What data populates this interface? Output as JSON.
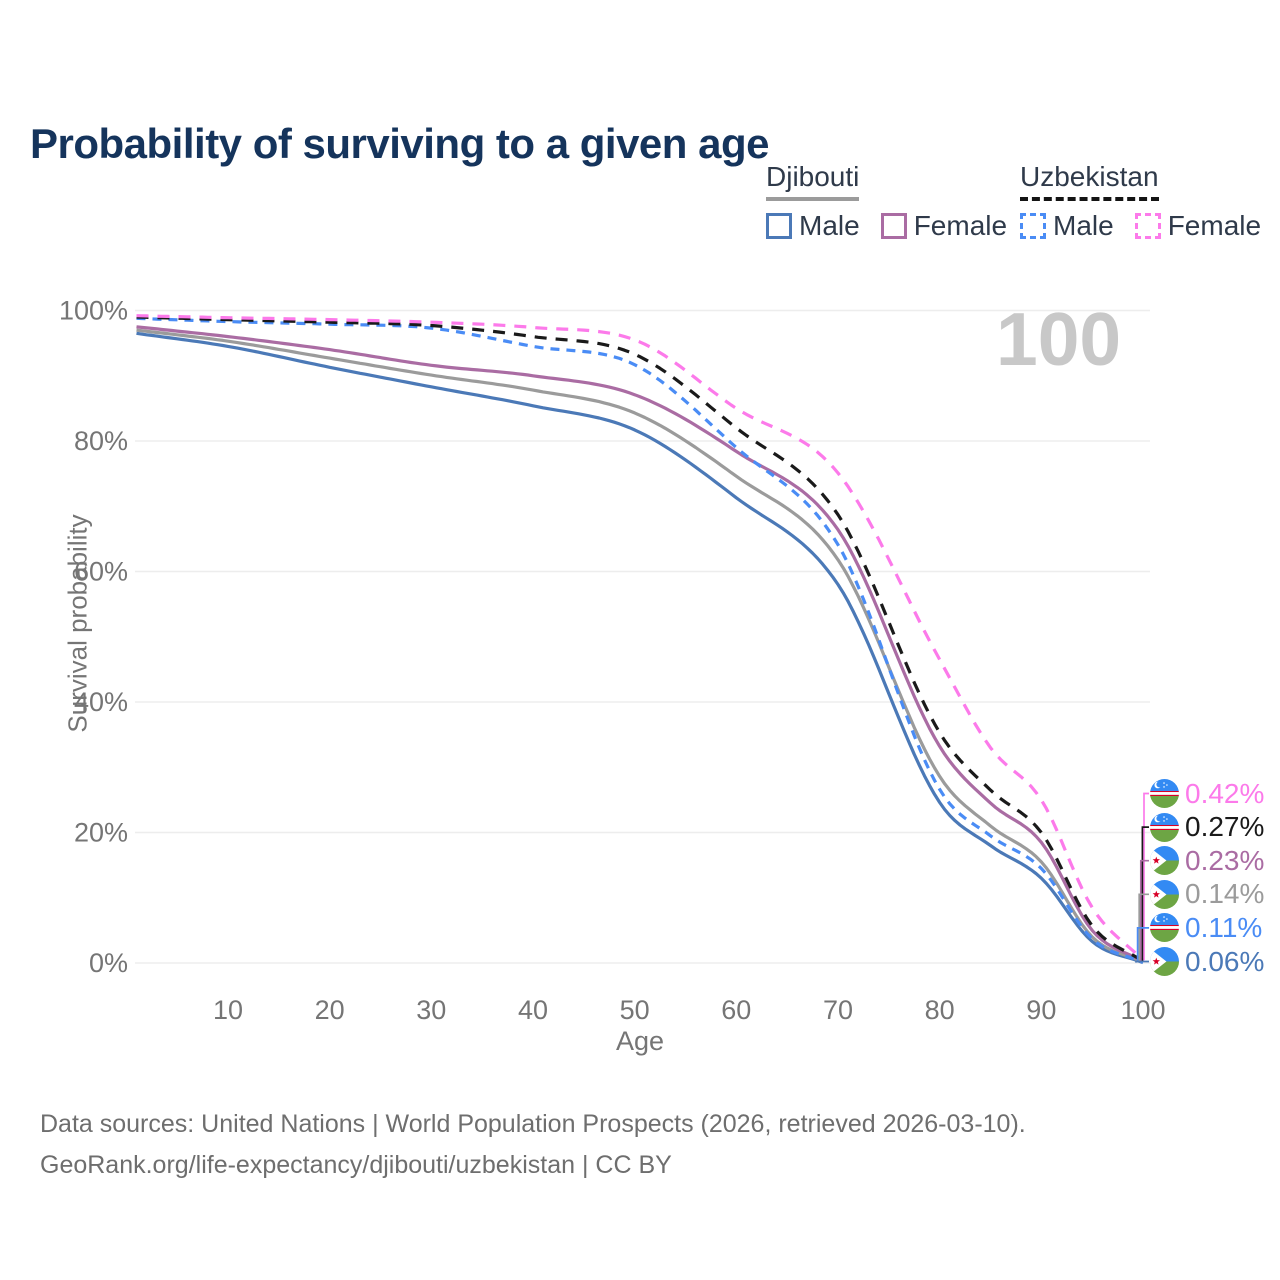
{
  "title": "Probability of surviving to a given age",
  "watermark": "100",
  "legend": {
    "djibouti": {
      "name": "Djibouti",
      "male": "Male",
      "female": "Female"
    },
    "uzbekistan": {
      "name": "Uzbekistan",
      "male": "Male",
      "female": "Female"
    }
  },
  "footer": {
    "line1": "Data sources: United Nations | World Population Prospects (2026, retrieved 2026-03-10).",
    "line2": "GeoRank.org/life-expectancy/djibouti/uzbekistan | CC BY"
  },
  "colors": {
    "title": "#15345c",
    "axis_text": "#757575",
    "gridline": "#ededed",
    "watermark": "#c8c8c8",
    "djibouti_male": "#4b79b7",
    "djibouti_female": "#aa6ca3",
    "djibouti_both": "#9b9b9b",
    "uzbekistan_male": "#4a8cf5",
    "uzbekistan_female": "#fc7aea",
    "uzbekistan_both": "#1a1a1a"
  },
  "chart_data": {
    "type": "line",
    "title": "Probability of surviving to a given age",
    "xlabel": "Age",
    "ylabel": "Survival probability",
    "xlim": [
      0,
      100
    ],
    "ylim": [
      0,
      100
    ],
    "grid": "horizontal-only",
    "legend_position": "top-right",
    "xticks": [
      10,
      20,
      30,
      40,
      50,
      60,
      70,
      80,
      90,
      100
    ],
    "yticks": [
      {
        "value": 0,
        "label": "0%"
      },
      {
        "value": 20,
        "label": "20%"
      },
      {
        "value": 40,
        "label": "40%"
      },
      {
        "value": 60,
        "label": "60%"
      },
      {
        "value": 80,
        "label": "80%"
      },
      {
        "value": 100,
        "label": "100%"
      }
    ],
    "x_ages": [
      1,
      10,
      20,
      30,
      40,
      50,
      60,
      70,
      80,
      85,
      90,
      95,
      100
    ],
    "series": [
      {
        "name": "Djibouti Male",
        "country": "Djibouti",
        "sex": "Male",
        "dashed": false,
        "color": "#4b79b7",
        "end_label": "0.06%",
        "values": [
          96.5,
          94.5,
          91.3,
          88.3,
          85.4,
          81.7,
          71.3,
          58.0,
          24.6,
          18.0,
          13.0,
          3.3,
          0.06
        ]
      },
      {
        "name": "Djibouti Both sexes",
        "country": "Djibouti",
        "sex": "Both sexes",
        "dashed": false,
        "color": "#9b9b9b",
        "end_label": "0.14%",
        "values": [
          97.0,
          95.3,
          92.7,
          90.1,
          87.8,
          84.3,
          74.6,
          61.8,
          28.6,
          21.0,
          15.5,
          4.0,
          0.14
        ]
      },
      {
        "name": "Djibouti Female",
        "country": "Djibouti",
        "sex": "Female",
        "dashed": false,
        "color": "#aa6ca3",
        "end_label": "0.23%",
        "values": [
          97.5,
          96.0,
          94.0,
          91.6,
          90.0,
          87.1,
          78.4,
          66.4,
          33.2,
          24.5,
          18.5,
          5.0,
          0.23
        ]
      },
      {
        "name": "Uzbekistan Male",
        "country": "Uzbekistan",
        "sex": "Male",
        "dashed": true,
        "color": "#4a8cf5",
        "end_label": "0.11%",
        "values": [
          98.8,
          98.3,
          97.9,
          97.3,
          94.5,
          91.7,
          79.0,
          64.1,
          26.6,
          19.5,
          14.5,
          3.7,
          0.11
        ]
      },
      {
        "name": "Uzbekistan Both sexes",
        "country": "Uzbekistan",
        "sex": "Both sexes",
        "dashed": true,
        "color": "#1a1a1a",
        "end_label": "0.27%",
        "values": [
          99.0,
          98.6,
          98.2,
          97.7,
          96.0,
          93.3,
          82.0,
          68.7,
          35.3,
          26.5,
          20.0,
          5.7,
          0.27
        ]
      },
      {
        "name": "Uzbekistan Female",
        "country": "Uzbekistan",
        "sex": "Female",
        "dashed": true,
        "color": "#fc7aea",
        "end_label": "0.42%",
        "values": [
          99.2,
          98.9,
          98.6,
          98.2,
          97.4,
          95.5,
          85.0,
          75.1,
          46.5,
          33.0,
          25.0,
          8.5,
          0.42
        ]
      }
    ]
  }
}
